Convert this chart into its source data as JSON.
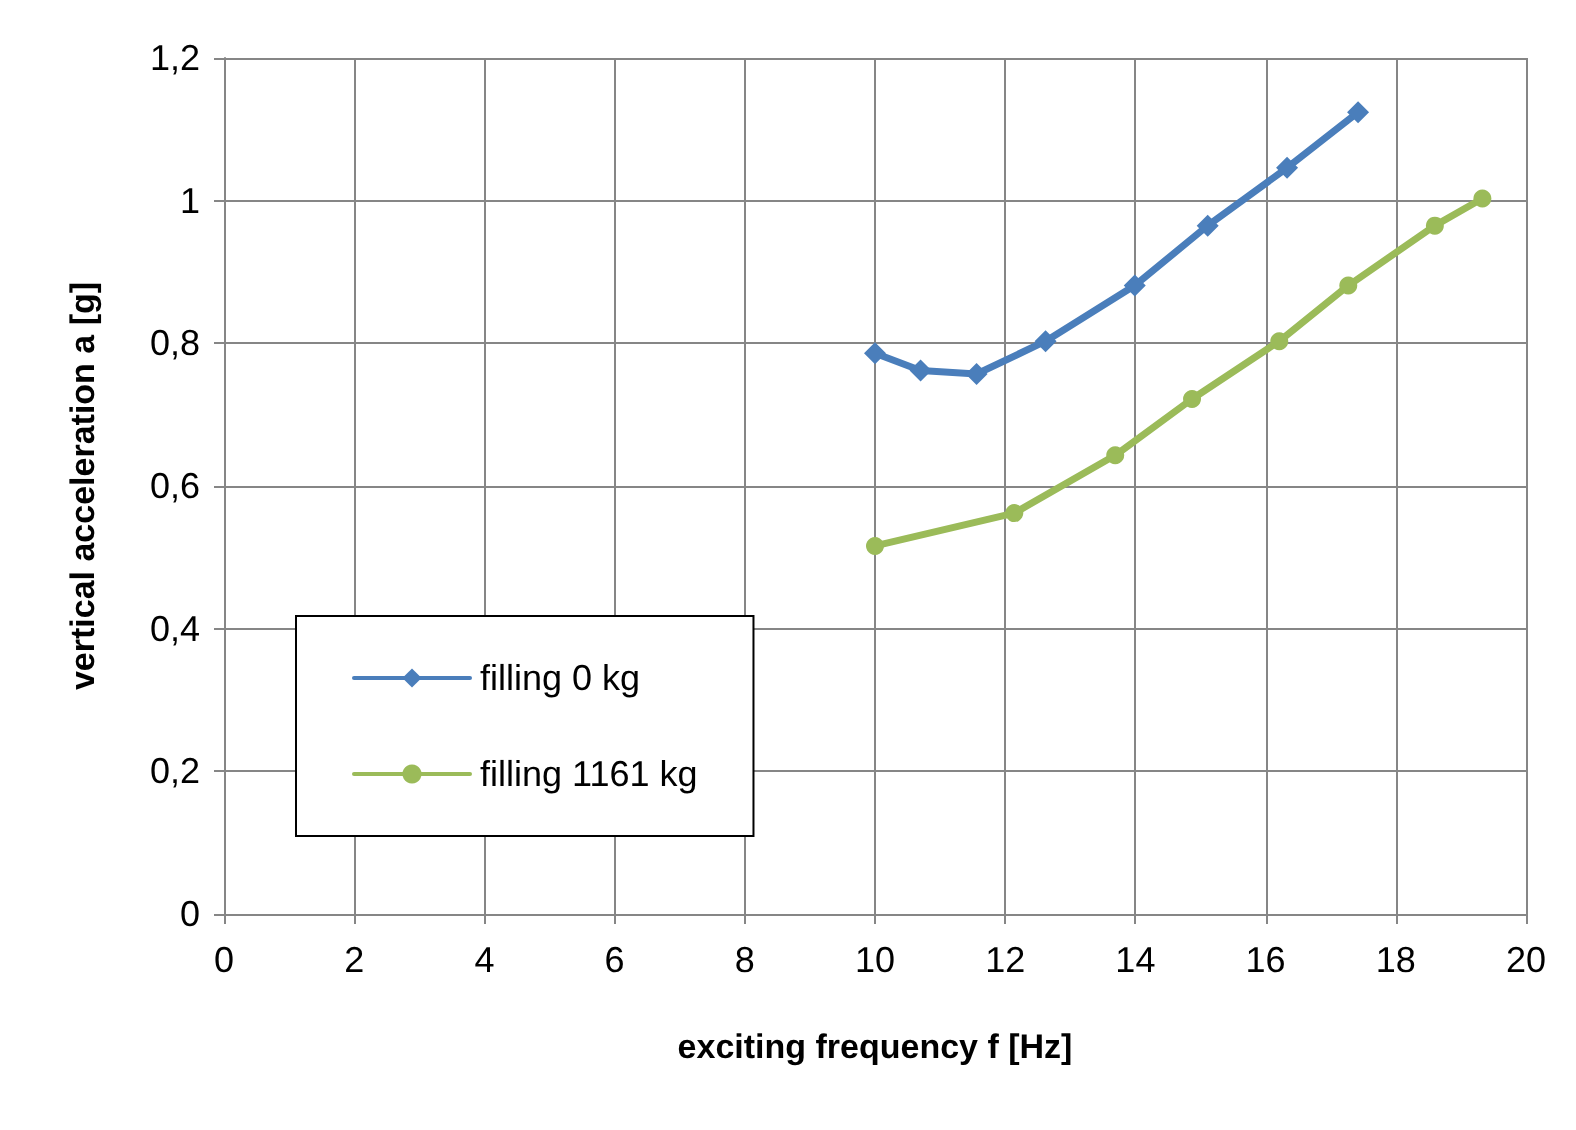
{
  "chart_data": {
    "type": "line",
    "xlabel": "exciting frequency f [Hz]",
    "ylabel": "vertical acceleration a [g]",
    "xlim": [
      0,
      20
    ],
    "xticks": [
      0,
      2,
      4,
      6,
      8,
      10,
      12,
      14,
      16,
      18,
      20
    ],
    "ylim": [
      0,
      1.2
    ],
    "yticks": [
      0,
      {
        "value": 0.2,
        "label": "0,2"
      },
      {
        "value": 0.4,
        "label": "0,4"
      },
      {
        "value": 0.6,
        "label": "0,6"
      },
      {
        "value": 0.8,
        "label": "0,8"
      },
      1,
      {
        "value": 1.2,
        "label": "1,2"
      }
    ],
    "grid": true,
    "legend": "left",
    "line_style": "solid",
    "series": [
      {
        "name": "filling 0 kg",
        "color": "#4a7ebb",
        "marker": "diamond",
        "x": [
          10,
          10.7,
          11.56,
          12.62,
          13.99,
          15.11,
          16.33,
          17.42
        ],
        "values": [
          0.786,
          0.762,
          0.757,
          0.803,
          0.881,
          0.965,
          1.046,
          1.124
        ]
      },
      {
        "name": "filling 1161 kg",
        "color": "#9bbb59",
        "marker": "circle",
        "x": [
          10,
          12.14,
          13.69,
          14.87,
          16.21,
          17.27,
          18.6,
          19.33
        ],
        "values": [
          0.516,
          0.562,
          0.643,
          0.722,
          0.803,
          0.881,
          0.965,
          1.003
        ]
      }
    ]
  }
}
